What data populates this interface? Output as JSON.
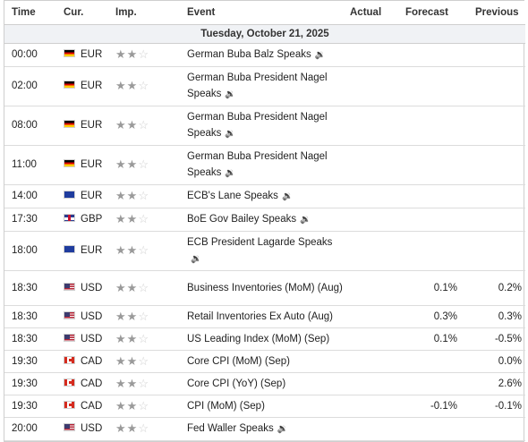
{
  "headers": {
    "time": "Time",
    "cur": "Cur.",
    "imp": "Imp.",
    "event": "Event",
    "actual": "Actual",
    "forecast": "Forecast",
    "previous": "Previous"
  },
  "date_label": "Tuesday, October 21, 2025",
  "icons": {
    "star": "star-icon",
    "speaker": "speaker-icon"
  },
  "rows": [
    {
      "time": "00:00",
      "flag": "de-flag",
      "cur": "EUR",
      "stars": 2,
      "event": "German Buba Balz Speaks",
      "speech": true,
      "actual": "",
      "forecast": "",
      "previous": ""
    },
    {
      "time": "02:00",
      "flag": "de-flag",
      "cur": "EUR",
      "stars": 2,
      "event": "German Buba President Nagel Speaks",
      "speech": true,
      "actual": "",
      "forecast": "",
      "previous": ""
    },
    {
      "time": "08:00",
      "flag": "de-flag",
      "cur": "EUR",
      "stars": 2,
      "event": "German Buba President Nagel Speaks",
      "speech": true,
      "actual": "",
      "forecast": "",
      "previous": ""
    },
    {
      "time": "11:00",
      "flag": "de-flag",
      "cur": "EUR",
      "stars": 2,
      "event": "German Buba President Nagel Speaks",
      "speech": true,
      "actual": "",
      "forecast": "",
      "previous": ""
    },
    {
      "time": "14:00",
      "flag": "eu-flag",
      "cur": "EUR",
      "stars": 2,
      "event": "ECB's Lane Speaks",
      "speech": true,
      "actual": "",
      "forecast": "",
      "previous": ""
    },
    {
      "time": "17:30",
      "flag": "gb-flag",
      "cur": "GBP",
      "stars": 2,
      "event": "BoE Gov Bailey Speaks",
      "speech": true,
      "actual": "",
      "forecast": "",
      "previous": ""
    },
    {
      "time": "18:00",
      "flag": "eu-flag",
      "cur": "EUR",
      "stars": 2,
      "event": "ECB President Lagarde Speaks",
      "speech": true,
      "actual": "",
      "forecast": "",
      "previous": ""
    },
    {
      "time": "18:30",
      "flag": "us-flag",
      "cur": "USD",
      "stars": 2,
      "event": "Business Inventories (MoM) (Aug)",
      "speech": false,
      "actual": "",
      "forecast": "0.1%",
      "previous": "0.2%"
    },
    {
      "time": "18:30",
      "flag": "us-flag",
      "cur": "USD",
      "stars": 2,
      "event": "Retail Inventories Ex Auto (Aug)",
      "speech": false,
      "actual": "",
      "forecast": "0.3%",
      "previous": "0.3%"
    },
    {
      "time": "18:30",
      "flag": "us-flag",
      "cur": "USD",
      "stars": 2,
      "event": "US Leading Index (MoM) (Sep)",
      "speech": false,
      "actual": "",
      "forecast": "0.1%",
      "previous": "-0.5%"
    },
    {
      "time": "19:30",
      "flag": "ca-flag",
      "cur": "CAD",
      "stars": 2,
      "event": "Core CPI (MoM) (Sep)",
      "speech": false,
      "actual": "",
      "forecast": "",
      "previous": "0.0%"
    },
    {
      "time": "19:30",
      "flag": "ca-flag",
      "cur": "CAD",
      "stars": 2,
      "event": "Core CPI (YoY) (Sep)",
      "speech": false,
      "actual": "",
      "forecast": "",
      "previous": "2.6%"
    },
    {
      "time": "19:30",
      "flag": "ca-flag",
      "cur": "CAD",
      "stars": 2,
      "event": "CPI (MoM) (Sep)",
      "speech": false,
      "actual": "",
      "forecast": "-0.1%",
      "previous": "-0.1%"
    },
    {
      "time": "20:00",
      "flag": "us-flag",
      "cur": "USD",
      "stars": 2,
      "event": "Fed Waller Speaks",
      "speech": true,
      "actual": "",
      "forecast": "",
      "previous": ""
    }
  ]
}
